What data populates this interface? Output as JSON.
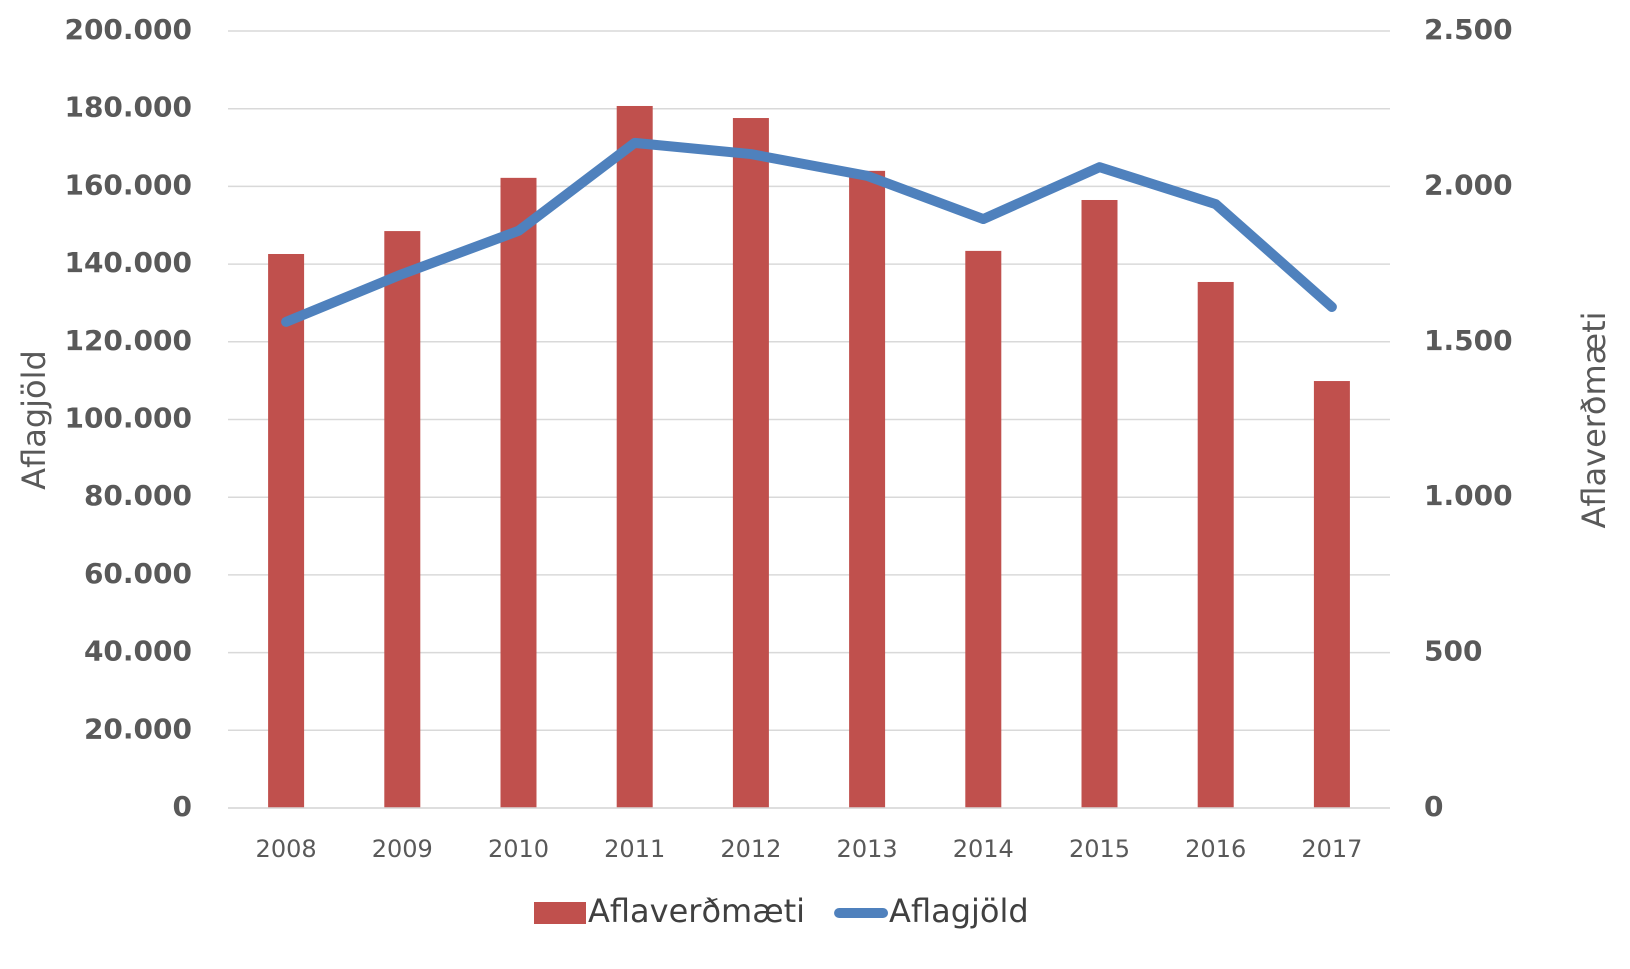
{
  "chart_data": {
    "type": "bar",
    "categories": [
      "2008",
      "2009",
      "2010",
      "2011",
      "2012",
      "2013",
      "2014",
      "2015",
      "2016",
      "2017"
    ],
    "series": [
      {
        "name": "Aflaverðmæti",
        "type": "bar",
        "color": "#c0504d",
        "values": [
          142600,
          148500,
          162200,
          180700,
          177600,
          164000,
          143400,
          156500,
          135400,
          109900
        ]
      },
      {
        "name": "Aflagjöld",
        "type": "line",
        "axis": "y2",
        "color": "#4f81bd",
        "values": [
          1564,
          1718,
          1857,
          2140,
          2104,
          2034,
          1895,
          2062,
          1943,
          1612
        ]
      }
    ],
    "ylabel": "Aflagjöld",
    "y2label": "Aflaverðmæti",
    "ylim": [
      0,
      200000
    ],
    "yticks": [
      0,
      {
        "value": 20000,
        "label": "20.000"
      },
      {
        "value": 40000,
        "label": "40.000"
      },
      {
        "value": 60000,
        "label": "60.000"
      },
      {
        "value": 80000,
        "label": "80.000"
      },
      {
        "value": 100000,
        "label": "100.000"
      },
      {
        "value": 120000,
        "label": "120.000"
      },
      {
        "value": 140000,
        "label": "140.000"
      },
      {
        "value": 160000,
        "label": "160.000"
      },
      {
        "value": 180000,
        "label": "180.000"
      },
      {
        "value": 200000,
        "label": "200.000"
      }
    ],
    "y2lim": [
      0,
      2500
    ],
    "y2ticks": [
      0,
      500,
      {
        "value": 1000,
        "label": "1.000"
      },
      {
        "value": 1500,
        "label": "1.500"
      },
      {
        "value": 2000,
        "label": "2.000"
      },
      {
        "value": 2500,
        "label": "2.500"
      }
    ],
    "grid": true,
    "legend": "bottom"
  }
}
